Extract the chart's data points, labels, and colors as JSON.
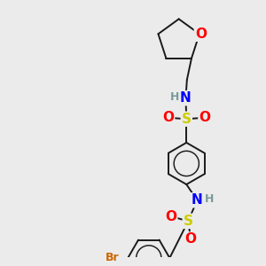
{
  "bg_color": "#ebebeb",
  "bond_color": "#1a1a1a",
  "bond_width": 1.4,
  "atom_colors": {
    "O": "#ff0000",
    "N": "#0000ff",
    "S": "#cccc00",
    "Br": "#cc6600",
    "H": "#7a9a9a",
    "C": "#1a1a1a"
  },
  "font_size": 10,
  "fig_size": [
    3.0,
    3.0
  ],
  "dpi": 100
}
